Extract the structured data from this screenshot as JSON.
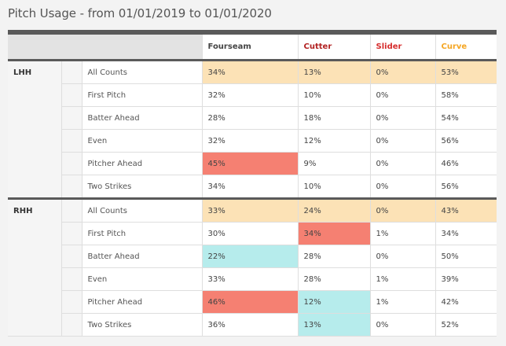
{
  "page": {
    "title": "Pitch Usage - from 01/01/2019 to 01/01/2020"
  },
  "columns": [
    {
      "label": "Fourseam",
      "color": "#444444"
    },
    {
      "label": "Cutter",
      "color": "#b22222"
    },
    {
      "label": "Slider",
      "color": "#d62d2d"
    },
    {
      "label": "Curve",
      "color": "#f5a623"
    }
  ],
  "colors": {
    "all_counts": "#fce2b6",
    "high": "#f58072",
    "low": "#b6ecec"
  },
  "groups": [
    {
      "name": "LHH",
      "rows": [
        {
          "label": "All Counts",
          "values": [
            "34%",
            "13%",
            "0%",
            "53%"
          ],
          "shade": [
            "all",
            "all",
            "all",
            "all"
          ]
        },
        {
          "label": "First Pitch",
          "values": [
            "32%",
            "10%",
            "0%",
            "58%"
          ],
          "shade": [
            "",
            "",
            "",
            ""
          ]
        },
        {
          "label": "Batter Ahead",
          "values": [
            "28%",
            "18%",
            "0%",
            "54%"
          ],
          "shade": [
            "",
            "",
            "",
            ""
          ]
        },
        {
          "label": "Even",
          "values": [
            "32%",
            "12%",
            "0%",
            "56%"
          ],
          "shade": [
            "",
            "",
            "",
            ""
          ]
        },
        {
          "label": "Pitcher Ahead",
          "values": [
            "45%",
            "9%",
            "0%",
            "46%"
          ],
          "shade": [
            "hot",
            "",
            "",
            ""
          ]
        },
        {
          "label": "Two Strikes",
          "values": [
            "34%",
            "10%",
            "0%",
            "56%"
          ],
          "shade": [
            "",
            "",
            "",
            ""
          ]
        }
      ]
    },
    {
      "name": "RHH",
      "rows": [
        {
          "label": "All Counts",
          "values": [
            "33%",
            "24%",
            "0%",
            "43%"
          ],
          "shade": [
            "all",
            "all",
            "all",
            "all"
          ]
        },
        {
          "label": "First Pitch",
          "values": [
            "30%",
            "34%",
            "1%",
            "34%"
          ],
          "shade": [
            "",
            "hot",
            "",
            ""
          ]
        },
        {
          "label": "Batter Ahead",
          "values": [
            "22%",
            "28%",
            "0%",
            "50%"
          ],
          "shade": [
            "cold",
            "",
            "",
            ""
          ]
        },
        {
          "label": "Even",
          "values": [
            "33%",
            "28%",
            "1%",
            "39%"
          ],
          "shade": [
            "",
            "",
            "",
            ""
          ]
        },
        {
          "label": "Pitcher Ahead",
          "values": [
            "46%",
            "12%",
            "1%",
            "42%"
          ],
          "shade": [
            "hot",
            "cold",
            "",
            ""
          ]
        },
        {
          "label": "Two Strikes",
          "values": [
            "36%",
            "13%",
            "0%",
            "52%"
          ],
          "shade": [
            "",
            "cold",
            "",
            ""
          ]
        }
      ]
    }
  ]
}
